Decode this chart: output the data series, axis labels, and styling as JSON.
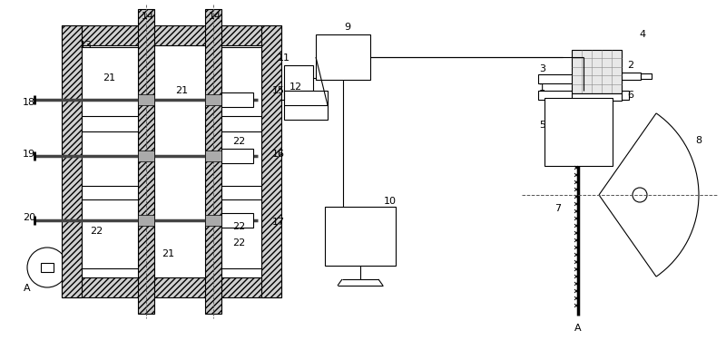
{
  "bg_color": "#ffffff",
  "line_color": "#000000",
  "fig_width": 8.0,
  "fig_height": 3.75,
  "dpi": 100
}
